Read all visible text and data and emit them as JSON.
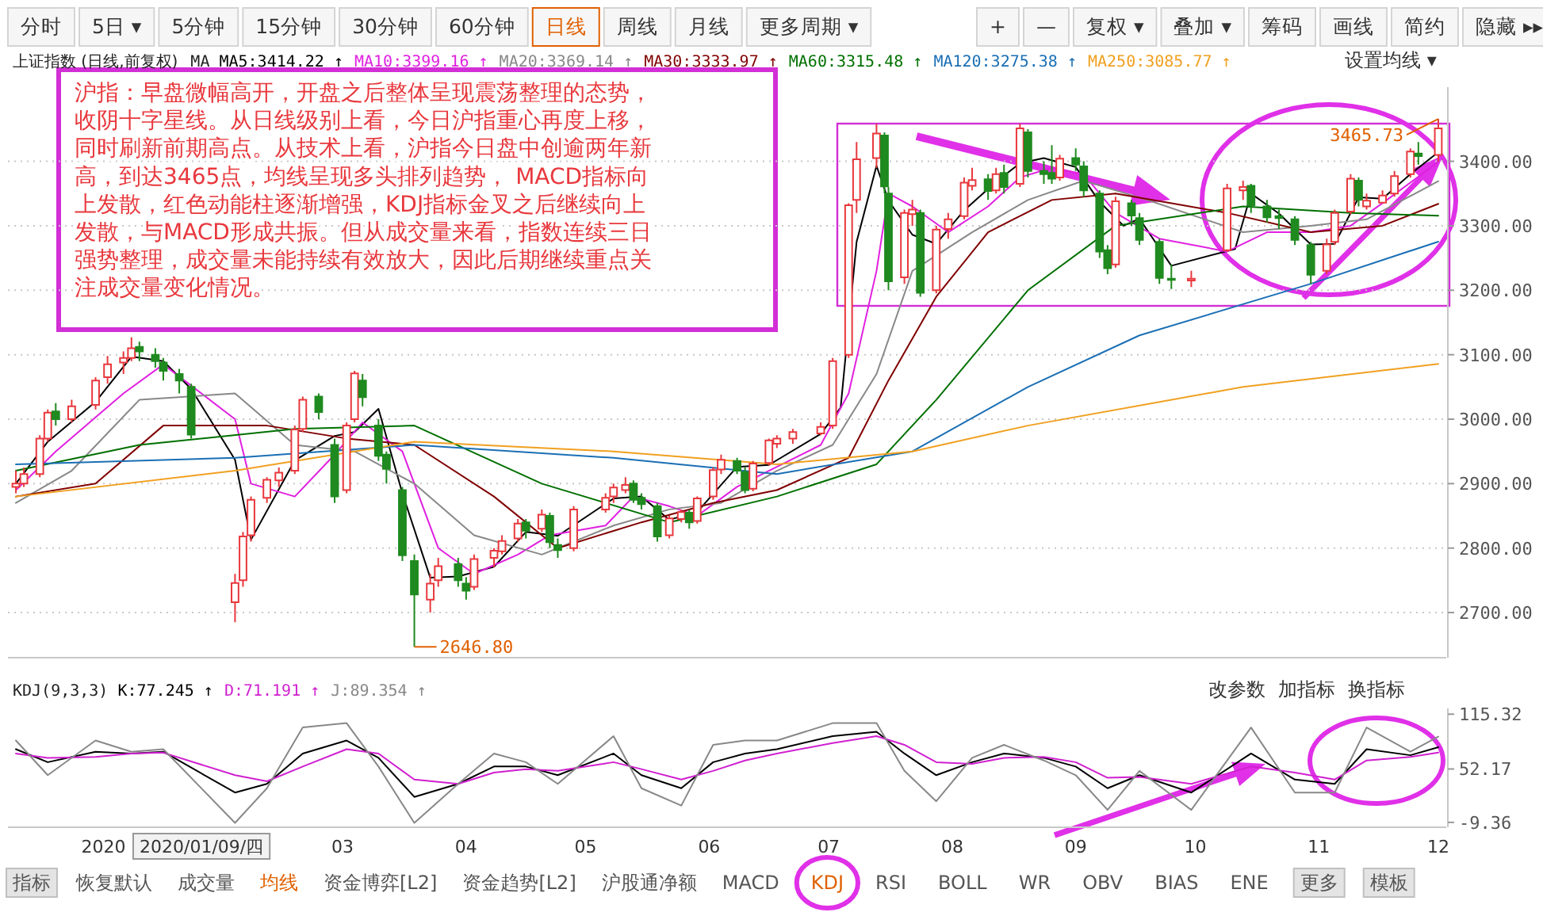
{
  "chart_data": [
    {
      "type": "candlestick",
      "title": "上证指数 (日线,前复权)",
      "legend_title": "MA",
      "legend": "top",
      "grid": "y",
      "tick_labels": "y",
      "x": [
        "2019-12-10",
        "2019-12-12",
        "2019-12-16",
        "2019-12-18",
        "2019-12-20",
        "2019-12-24",
        "2019-12-30",
        "2020-01-02",
        "2020-01-06",
        "2020-01-08",
        "2020-01-10",
        "2020-01-14",
        "2020-01-16",
        "2020-01-20",
        "2020-01-23",
        "2020-02-03",
        "2020-02-05",
        "2020-02-07",
        "2020-02-11",
        "2020-02-14",
        "2020-02-18",
        "2020-02-20",
        "2020-02-24",
        "2020-02-28",
        "2020-03-02",
        "2020-03-04",
        "2020-03-06",
        "2020-03-10",
        "2020-03-12",
        "2020-03-16",
        "2020-03-19",
        "2020-03-23",
        "2020-03-25",
        "2020-03-30",
        "2020-04-01",
        "2020-04-03",
        "2020-04-08",
        "2020-04-10",
        "2020-04-14",
        "2020-04-16",
        "2020-04-20",
        "2020-04-22",
        "2020-04-24",
        "2020-04-28",
        "2020-05-06",
        "2020-05-08",
        "2020-05-11",
        "2020-05-13",
        "2020-05-15",
        "2020-05-19",
        "2020-05-22",
        "2020-05-25",
        "2020-05-27",
        "2020-05-29",
        "2020-06-02",
        "2020-06-04",
        "2020-06-08",
        "2020-06-10",
        "2020-06-12",
        "2020-06-16",
        "2020-06-18",
        "2020-06-22",
        "2020-06-29",
        "2020-07-02",
        "2020-07-06",
        "2020-07-08",
        "2020-07-13",
        "2020-07-15",
        "2020-07-16",
        "2020-07-20",
        "2020-07-22",
        "2020-07-24",
        "2020-07-28",
        "2020-07-31",
        "2020-08-04",
        "2020-08-06",
        "2020-08-10",
        "2020-08-12",
        "2020-08-14",
        "2020-08-18",
        "2020-08-20",
        "2020-08-24",
        "2020-08-26",
        "2020-08-28",
        "2020-09-01",
        "2020-09-03",
        "2020-09-07",
        "2020-09-09",
        "2020-09-11",
        "2020-09-15",
        "2020-09-17",
        "2020-09-22",
        "2020-09-25",
        "2020-09-30",
        "2020-10-09",
        "2020-10-13",
        "2020-10-15",
        "2020-10-19",
        "2020-10-22",
        "2020-10-26",
        "2020-10-30",
        "2020-11-03",
        "2020-11-05",
        "2020-11-09",
        "2020-11-11",
        "2020-11-13",
        "2020-11-17",
        "2020-11-20",
        "2020-11-24",
        "2020-11-26",
        "2020-12-01"
      ],
      "ohlc": [
        [
          2895,
          2920,
          2885,
          2900
        ],
        [
          2900,
          2925,
          2895,
          2915
        ],
        [
          2915,
          2975,
          2910,
          2970
        ],
        [
          2970,
          3015,
          2965,
          3010
        ],
        [
          3012,
          3025,
          2990,
          3000
        ],
        [
          3000,
          3030,
          2995,
          3020
        ],
        [
          3022,
          3065,
          3015,
          3060
        ],
        [
          3065,
          3098,
          3055,
          3085
        ],
        [
          3088,
          3105,
          3070,
          3095
        ],
        [
          3095,
          3127,
          3090,
          3110
        ],
        [
          3112,
          3120,
          3090,
          3105
        ],
        [
          3100,
          3110,
          3080,
          3090
        ],
        [
          3088,
          3095,
          3060,
          3075
        ],
        [
          3070,
          3078,
          3040,
          3060
        ],
        [
          3050,
          3055,
          2970,
          2976
        ],
        [
          2716,
          2760,
          2685,
          2746
        ],
        [
          2750,
          2825,
          2740,
          2818
        ],
        [
          2820,
          2880,
          2810,
          2875
        ],
        [
          2878,
          2910,
          2870,
          2906
        ],
        [
          2905,
          2925,
          2895,
          2917
        ],
        [
          2920,
          2990,
          2915,
          2984
        ],
        [
          2985,
          3035,
          2980,
          3030
        ],
        [
          3035,
          3040,
          3000,
          3011
        ],
        [
          2960,
          2970,
          2870,
          2880
        ],
        [
          2890,
          2995,
          2885,
          2990
        ],
        [
          3000,
          3075,
          2995,
          3071
        ],
        [
          3060,
          3070,
          3020,
          3034
        ],
        [
          2990,
          3000,
          2935,
          2943
        ],
        [
          2945,
          2950,
          2900,
          2923
        ],
        [
          2890,
          2895,
          2780,
          2789
        ],
        [
          2780,
          2790,
          2646.8,
          2728
        ],
        [
          2720,
          2760,
          2700,
          2745
        ],
        [
          2750,
          2785,
          2740,
          2772
        ],
        [
          2775,
          2785,
          2740,
          2750
        ],
        [
          2745,
          2755,
          2720,
          2734
        ],
        [
          2740,
          2790,
          2735,
          2783
        ],
        [
          2785,
          2800,
          2770,
          2796
        ],
        [
          2795,
          2820,
          2790,
          2811
        ],
        [
          2815,
          2845,
          2810,
          2838
        ],
        [
          2840,
          2845,
          2815,
          2827
        ],
        [
          2830,
          2860,
          2825,
          2852
        ],
        [
          2850,
          2855,
          2800,
          2809
        ],
        [
          2805,
          2815,
          2785,
          2797
        ],
        [
          2800,
          2865,
          2795,
          2860
        ],
        [
          2860,
          2885,
          2855,
          2878
        ],
        [
          2880,
          2900,
          2870,
          2894
        ],
        [
          2890,
          2910,
          2885,
          2898
        ],
        [
          2900,
          2905,
          2870,
          2875
        ],
        [
          2878,
          2885,
          2860,
          2868
        ],
        [
          2865,
          2870,
          2810,
          2818
        ],
        [
          2820,
          2850,
          2815,
          2846
        ],
        [
          2845,
          2860,
          2840,
          2856
        ],
        [
          2855,
          2860,
          2830,
          2840
        ],
        [
          2842,
          2880,
          2838,
          2877
        ],
        [
          2880,
          2925,
          2875,
          2921
        ],
        [
          2922,
          2945,
          2915,
          2937
        ],
        [
          2935,
          2940,
          2915,
          2920
        ],
        [
          2918,
          2925,
          2885,
          2890
        ],
        [
          2892,
          2935,
          2888,
          2931
        ],
        [
          2932,
          2970,
          2928,
          2967
        ],
        [
          2962,
          2975,
          2955,
          2970
        ],
        [
          2970,
          2985,
          2962,
          2980
        ],
        [
          2978,
          2995,
          2975,
          2988
        ],
        [
          2990,
          3095,
          2985,
          3090
        ],
        [
          3100,
          3335,
          3095,
          3332
        ],
        [
          3340,
          3430,
          3320,
          3403
        ],
        [
          3405,
          3458,
          3390,
          3443
        ],
        [
          3440,
          3445,
          3350,
          3361
        ],
        [
          3350,
          3360,
          3200,
          3214
        ],
        [
          3220,
          3325,
          3210,
          3320
        ],
        [
          3318,
          3340,
          3300,
          3325
        ],
        [
          3320,
          3325,
          3190,
          3196
        ],
        [
          3200,
          3300,
          3195,
          3294
        ],
        [
          3295,
          3320,
          3280,
          3310
        ],
        [
          3315,
          3375,
          3310,
          3367
        ],
        [
          3362,
          3390,
          3355,
          3371
        ],
        [
          3372,
          3380,
          3340,
          3354
        ],
        [
          3355,
          3390,
          3350,
          3380
        ],
        [
          3382,
          3395,
          3350,
          3360
        ],
        [
          3365,
          3458,
          3360,
          3451
        ],
        [
          3445,
          3450,
          3375,
          3385
        ],
        [
          3385,
          3400,
          3365,
          3380
        ],
        [
          3382,
          3425,
          3365,
          3373
        ],
        [
          3375,
          3410,
          3370,
          3404
        ],
        [
          3405,
          3420,
          3385,
          3395
        ],
        [
          3392,
          3400,
          3345,
          3355
        ],
        [
          3350,
          3355,
          3250,
          3260
        ],
        [
          3262,
          3270,
          3225,
          3234
        ],
        [
          3240,
          3345,
          3235,
          3338
        ],
        [
          3335,
          3340,
          3300,
          3316
        ],
        [
          3312,
          3320,
          3270,
          3278
        ],
        [
          3275,
          3280,
          3210,
          3219
        ],
        [
          3218,
          3240,
          3202,
          3217
        ],
        [
          3215,
          3230,
          3205,
          3218
        ],
        [
          3262,
          3365,
          3260,
          3358
        ],
        [
          3355,
          3370,
          3340,
          3360
        ],
        [
          3362,
          3365,
          3320,
          3332
        ],
        [
          3330,
          3340,
          3305,
          3313
        ],
        [
          3315,
          3325,
          3295,
          3312
        ],
        [
          3310,
          3315,
          3270,
          3278
        ],
        [
          3270,
          3275,
          3210,
          3224
        ],
        [
          3230,
          3280,
          3225,
          3271
        ],
        [
          3275,
          3325,
          3270,
          3320
        ],
        [
          3322,
          3380,
          3318,
          3373
        ],
        [
          3370,
          3375,
          3330,
          3340
        ],
        [
          3330,
          3350,
          3325,
          3339
        ],
        [
          3336,
          3355,
          3335,
          3347
        ],
        [
          3350,
          3385,
          3345,
          3377
        ],
        [
          3380,
          3420,
          3375,
          3415
        ],
        [
          3412,
          3430,
          3395,
          3408
        ],
        [
          3410,
          3465.73,
          3400,
          3451
        ]
      ],
      "series": [
        {
          "name": "MA5:3414.22 ↑",
          "type": "line",
          "color": "#000000",
          "x": [
            "2019-12-10",
            "2019-12-18",
            "2019-12-30",
            "2020-01-08",
            "2020-01-16",
            "2020-01-23",
            "2020-02-03",
            "2020-02-07",
            "2020-02-18",
            "2020-02-28",
            "2020-03-04",
            "2020-03-10",
            "2020-03-16",
            "2020-03-23",
            "2020-03-30",
            "2020-04-08",
            "2020-04-16",
            "2020-04-24",
            "2020-05-08",
            "2020-05-15",
            "2020-05-22",
            "2020-05-29",
            "2020-06-08",
            "2020-06-16",
            "2020-06-29",
            "2020-07-04",
            "2020-07-08",
            "2020-07-13",
            "2020-07-16",
            "2020-07-22",
            "2020-07-28",
            "2020-08-04",
            "2020-08-12",
            "2020-08-18",
            "2020-08-24",
            "2020-09-01",
            "2020-09-07",
            "2020-09-13",
            "2020-09-17",
            "2020-09-25",
            "2020-10-11",
            "2020-10-15",
            "2020-10-22",
            "2020-10-30",
            "2020-11-05",
            "2020-11-11",
            "2020-11-17",
            "2020-11-24",
            "2020-12-01"
          ],
          "values": [
            2900,
            2965,
            3027,
            3097,
            3090,
            3047,
            2937,
            2813,
            2936,
            2974,
            2980,
            3016,
            2885,
            2754,
            2756,
            2771,
            2825,
            2819,
            2877,
            2880,
            2844,
            2856,
            2926,
            2929,
            2977,
            3018,
            3275,
            3393,
            3339,
            3286,
            3272,
            3324,
            3368,
            3397,
            3405,
            3391,
            3337,
            3300,
            3311,
            3238,
            3264,
            3350,
            3319,
            3271,
            3272,
            3344,
            3342,
            3380,
            3414.22
          ]
        },
        {
          "name": "MA10:3399.16 ↑",
          "type": "line",
          "color": "#e020e0",
          "x": [
            "2019-12-10",
            "2019-12-20",
            "2020-01-06",
            "2020-01-16",
            "2020-02-03",
            "2020-02-07",
            "2020-02-18",
            "2020-02-28",
            "2020-03-06",
            "2020-03-16",
            "2020-03-25",
            "2020-04-03",
            "2020-04-14",
            "2020-04-22",
            "2020-05-06",
            "2020-05-13",
            "2020-05-22",
            "2020-05-29",
            "2020-06-08",
            "2020-06-16",
            "2020-06-29",
            "2020-07-06",
            "2020-07-13",
            "2020-07-16",
            "2020-07-22",
            "2020-07-31",
            "2020-08-10",
            "2020-08-18",
            "2020-08-26",
            "2020-09-03",
            "2020-09-11",
            "2020-09-22",
            "2020-10-09",
            "2020-10-19",
            "2020-10-30",
            "2020-11-09",
            "2020-11-17",
            "2020-12-01"
          ],
          "values": [
            2890,
            2950,
            3040,
            3085,
            3000,
            2900,
            2880,
            2945,
            2995,
            2950,
            2800,
            2760,
            2790,
            2820,
            2835,
            2880,
            2865,
            2850,
            2895,
            2920,
            2960,
            3040,
            3230,
            3350,
            3330,
            3290,
            3330,
            3375,
            3390,
            3380,
            3320,
            3280,
            3260,
            3290,
            3290,
            3300,
            3335,
            3399.16
          ]
        },
        {
          "name": "MA20:3369.14 ↑",
          "type": "line",
          "color": "#888888",
          "x": [
            "2019-12-10",
            "2019-12-24",
            "2020-01-10",
            "2020-02-03",
            "2020-02-18",
            "2020-03-04",
            "2020-03-19",
            "2020-04-03",
            "2020-04-20",
            "2020-05-08",
            "2020-05-22",
            "2020-06-04",
            "2020-06-18",
            "2020-07-02",
            "2020-07-13",
            "2020-07-22",
            "2020-08-06",
            "2020-08-20",
            "2020-09-03",
            "2020-09-19",
            "2020-10-13",
            "2020-10-30",
            "2020-11-13",
            "2020-12-01"
          ],
          "values": [
            2870,
            2920,
            3030,
            3040,
            2960,
            2950,
            2900,
            2820,
            2790,
            2835,
            2860,
            2870,
            2920,
            2960,
            3070,
            3230,
            3290,
            3340,
            3370,
            3340,
            3290,
            3300,
            3310,
            3369.14
          ]
        },
        {
          "name": "MA30:3333.97 ↑",
          "type": "line",
          "color": "#800000",
          "x": [
            "2019-12-10",
            "2019-12-30",
            "2020-01-16",
            "2020-02-11",
            "2020-03-02",
            "2020-03-19",
            "2020-04-08",
            "2020-04-24",
            "2020-05-15",
            "2020-06-02",
            "2020-06-18",
            "2020-07-06",
            "2020-07-16",
            "2020-07-28",
            "2020-08-10",
            "2020-08-26",
            "2020-09-11",
            "2020-10-09",
            "2020-10-30",
            "2020-11-17",
            "2020-12-01"
          ],
          "values": [
            2880,
            2900,
            2990,
            2990,
            2970,
            2960,
            2880,
            2800,
            2840,
            2870,
            2890,
            2940,
            3060,
            3190,
            3290,
            3340,
            3350,
            3320,
            3290,
            3300,
            3333.97
          ]
        },
        {
          "name": "MA60:3315.48 ↑",
          "type": "line",
          "color": "#007000",
          "x": [
            "2019-12-10",
            "2020-01-10",
            "2020-02-18",
            "2020-03-19",
            "2020-04-20",
            "2020-05-22",
            "2020-06-18",
            "2020-07-13",
            "2020-07-28",
            "2020-08-20",
            "2020-09-11",
            "2020-10-13",
            "2020-11-09",
            "2020-12-01"
          ],
          "values": [
            2920,
            2960,
            2985,
            2990,
            2900,
            2840,
            2880,
            2930,
            3030,
            3200,
            3300,
            3330,
            3320,
            3315.48
          ]
        },
        {
          "name": "MA120:3275.38 ↑",
          "type": "line",
          "color": "#1a6fb5",
          "x": [
            "2019-12-10",
            "2020-02-03",
            "2020-03-19",
            "2020-05-08",
            "2020-06-18",
            "2020-07-22",
            "2020-08-20",
            "2020-09-17",
            "2020-10-30",
            "2020-12-01"
          ],
          "values": [
            2930,
            2940,
            2960,
            2940,
            2915,
            2950,
            3050,
            3130,
            3210,
            3275.38
          ]
        },
        {
          "name": "MA250:3085.77 ↑",
          "type": "line",
          "color": "#f0a020",
          "x": [
            "2019-12-10",
            "2020-02-03",
            "2020-03-19",
            "2020-05-08",
            "2020-06-18",
            "2020-07-22",
            "2020-08-20",
            "2020-10-13",
            "2020-12-01"
          ],
          "values": [
            2880,
            2920,
            2965,
            2950,
            2930,
            2950,
            2990,
            3050,
            3085.77
          ]
        }
      ],
      "xlim": [
        "2019-12-08",
        "2020-12-03"
      ],
      "ylim": [
        2630,
        3515
      ],
      "yticks": [
        {
          "value": 2700,
          "label": "2700.00"
        },
        {
          "value": 2800,
          "label": "2800.00"
        },
        {
          "value": 2900,
          "label": "2900.00"
        },
        {
          "value": 3000,
          "label": "3000.00"
        },
        {
          "value": 3100,
          "label": "3100.00"
        },
        {
          "value": 3200,
          "label": "3200.00"
        },
        {
          "value": 3300,
          "label": "3300.00"
        },
        {
          "value": 3400,
          "label": "3400.00"
        }
      ],
      "annotations": [
        "沪指：早盘微幅高开，开盘之后整体呈现震荡整理的态势，收阴十字星线。从日线级别上看，今日沪指重心再度上移，同时刷新前期高点。从技术上看，沪指今日盘中创逾两年新高，到达3465点，均线呈现多头排列趋势， MACD指标向上发散，红色动能柱逐渐增强，KDJ指标金叉之后继续向上发散，与MACD形成共振。但从成交量来看，指数连续三日强势整理，成交量未能持续有效放大，因此后期继续重点关注成交量变化情况。",
        "设置均线 ▾",
        {
          "text": "2646.80",
          "x": "2020-03-19",
          "y": 2646.8
        },
        {
          "text": "3465.73",
          "x": "2020-12-01",
          "y": 3465.73
        }
      ]
    },
    {
      "type": "line",
      "legend_title": "KDJ(9,3,3)",
      "legend": "top",
      "xlim": [
        "2019-12-08",
        "2020-12-03"
      ],
      "ylim": [
        -15,
        122
      ],
      "yticks": [
        115.32,
        52.17,
        -9.36
      ],
      "xticks": [
        {
          "value": "2020-01",
          "label": "2020"
        },
        {
          "value": "2020-03",
          "label": "03"
        },
        {
          "value": "2020-04",
          "label": "04"
        },
        {
          "value": "2020-05",
          "label": "05"
        },
        {
          "value": "2020-06",
          "label": "06"
        },
        {
          "value": "2020-07",
          "label": "07"
        },
        {
          "value": "2020-08",
          "label": "08"
        },
        {
          "value": "2020-09",
          "label": "09"
        },
        {
          "value": "2020-10",
          "label": "10"
        },
        {
          "value": "2020-11",
          "label": "11"
        },
        {
          "value": "2020-12",
          "label": "12"
        }
      ],
      "x": [
        "2019-12-10",
        "2019-12-18",
        "2019-12-30",
        "2020-01-08",
        "2020-01-16",
        "2020-02-03",
        "2020-02-11",
        "2020-02-20",
        "2020-03-02",
        "2020-03-10",
        "2020-03-19",
        "2020-03-30",
        "2020-04-08",
        "2020-04-16",
        "2020-04-24",
        "2020-05-08",
        "2020-05-15",
        "2020-05-25",
        "2020-06-02",
        "2020-06-10",
        "2020-06-18",
        "2020-07-02",
        "2020-07-13",
        "2020-07-20",
        "2020-07-28",
        "2020-08-06",
        "2020-08-14",
        "2020-08-24",
        "2020-09-01",
        "2020-09-09",
        "2020-09-17",
        "2020-09-30",
        "2020-10-15",
        "2020-10-26",
        "2020-11-05",
        "2020-11-13",
        "2020-11-24",
        "2020-12-01"
      ],
      "series": [
        {
          "name": "K:77.245 ↑",
          "color": "#000000",
          "values": [
            75,
            60,
            72,
            70,
            72,
            25,
            35,
            70,
            85,
            65,
            20,
            35,
            55,
            55,
            45,
            70,
            45,
            30,
            60,
            70,
            75,
            90,
            95,
            70,
            45,
            60,
            70,
            65,
            55,
            30,
            45,
            25,
            70,
            40,
            35,
            75,
            68,
            77.245
          ]
        },
        {
          "name": "D:71.191 ↑",
          "color": "#d020d0",
          "values": [
            70,
            65,
            66,
            70,
            71,
            45,
            38,
            55,
            75,
            70,
            40,
            35,
            48,
            52,
            50,
            60,
            52,
            40,
            50,
            62,
            70,
            82,
            90,
            80,
            60,
            58,
            65,
            66,
            60,
            42,
            43,
            35,
            55,
            48,
            40,
            62,
            66,
            71.191
          ]
        },
        {
          "name": "J:89.354 ↑",
          "color": "#888888",
          "values": [
            85,
            45,
            85,
            72,
            75,
            -10,
            30,
            100,
            105,
            55,
            -10,
            35,
            70,
            60,
            35,
            90,
            30,
            10,
            80,
            85,
            85,
            105,
            105,
            50,
            15,
            65,
            80,
            62,
            45,
            5,
            50,
            5,
            100,
            25,
            25,
            100,
            72,
            89.354
          ]
        }
      ],
      "annotations": [
        "改参数",
        "加指标",
        "换指标",
        "2020/01/09/四"
      ]
    },
    {
      "type": "other",
      "annotations": [
        "分时",
        "5日 ▾",
        "5分钟",
        "15分钟",
        "30分钟",
        "60分钟",
        "日线",
        "周线",
        "月线",
        "更多周期 ▾",
        "+",
        "—",
        "复权 ▾",
        "叠加 ▾",
        "筹码",
        "画线",
        "简约",
        "隐藏 ▸▸"
      ]
    },
    {
      "type": "other",
      "annotations": [
        "指标",
        "恢复默认",
        "成交量",
        "均线",
        "资金博弈[L2]",
        "资金趋势[L2]",
        "沪股通净额",
        "MACD",
        "KDJ",
        "RSI",
        "BOLL",
        "WR",
        "OBV",
        "BIAS",
        "ENE",
        "更多",
        "模板"
      ]
    }
  ]
}
